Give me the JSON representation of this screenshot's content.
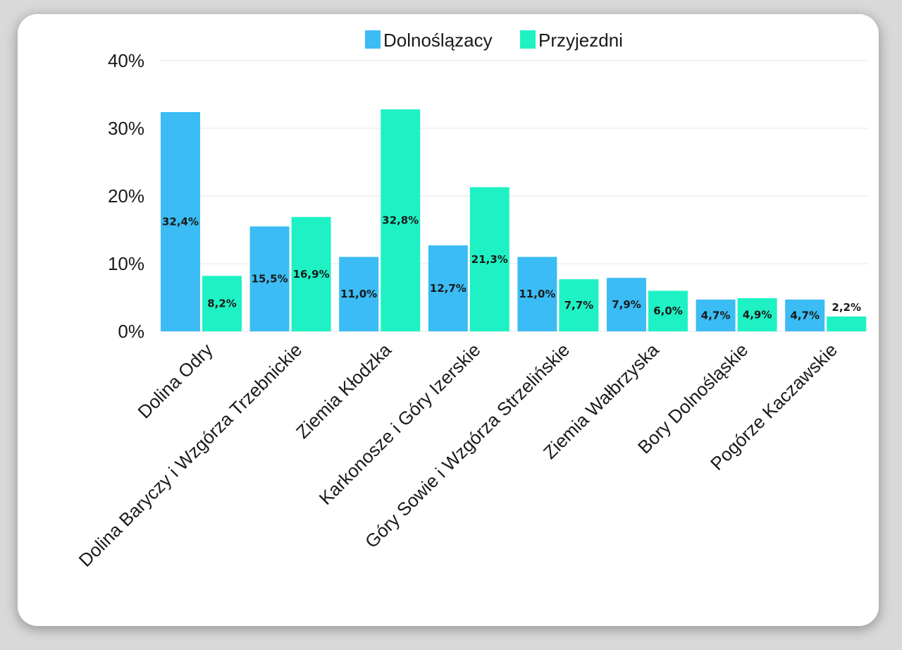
{
  "colors": {
    "series1": "#3bbcf4",
    "series2": "#1ef2c4",
    "grid": "#e6e6e6",
    "card": "#ffffff",
    "background": "#d9d9d9"
  },
  "chart_data": {
    "type": "bar",
    "title": "",
    "xlabel": "",
    "ylabel": "",
    "legend_position": "top",
    "grid": true,
    "ylim": [
      0,
      40
    ],
    "yticks": [
      "0%",
      "10%",
      "20%",
      "30%",
      "40%"
    ],
    "categories": [
      "Dolina Odry",
      "Dolina Baryczy i Wzgórza Trzebnickie",
      "Ziemia Kłodzka",
      "Karkonosze i Góry Izerskie",
      "Góry Sowie i Wzgórza Strzelińskie",
      "Ziemia Wałbrzyska",
      "Bory Dolnośląskie",
      "Pogórze Kaczawskie"
    ],
    "series": [
      {
        "name": "Dolnoślązacy",
        "values": [
          32.4,
          15.5,
          11.0,
          12.7,
          11.0,
          7.9,
          4.7,
          4.7
        ],
        "labels": [
          "32,4%",
          "15,5%",
          "11,0%",
          "12,7%",
          "11,0%",
          "7,9%",
          "4,7%",
          "4,7%"
        ]
      },
      {
        "name": "Przyjezdni",
        "values": [
          8.2,
          16.9,
          32.8,
          21.3,
          7.7,
          6.0,
          4.9,
          2.2
        ],
        "labels": [
          "8,2%",
          "16,9%",
          "32,8%",
          "21,3%",
          "7,7%",
          "6,0%",
          "4,9%",
          "2,2%"
        ]
      }
    ]
  }
}
